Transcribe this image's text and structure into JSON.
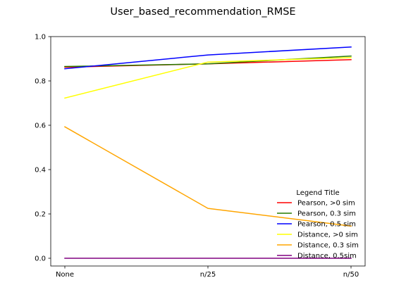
{
  "chart_data": {
    "type": "line",
    "title": "User_based_recommendation_RMSE",
    "xlabel": "",
    "ylabel": "",
    "categories": [
      "None",
      "n/25",
      "n/50"
    ],
    "ylim": [
      0.0,
      1.0
    ],
    "yticks": [
      "0.0",
      "0.2",
      "0.4",
      "0.6",
      "0.8",
      "1.0"
    ],
    "grid": false,
    "legend": {
      "title": "Legend Title",
      "placement": "lower-right"
    },
    "series": [
      {
        "name": "Pearson, >0 sim",
        "color": "#ff0000",
        "values": [
          0.862,
          0.877,
          0.896
        ]
      },
      {
        "name": "Pearson, 0.3 sim",
        "color": "#267a00",
        "values": [
          0.865,
          0.877,
          0.912
        ]
      },
      {
        "name": "Pearson, 0.5 sim",
        "color": "#0000ff",
        "values": [
          0.855,
          0.917,
          0.953
        ]
      },
      {
        "name": "Distance, >0 sim",
        "color": "#ffff00",
        "values": [
          0.723,
          0.885,
          0.905
        ]
      },
      {
        "name": "Distance, 0.3 sim",
        "color": "#ffa500",
        "values": [
          0.593,
          0.225,
          0.145
        ]
      },
      {
        "name": "Distance, 0.5sim",
        "color": "#800080",
        "values": [
          0.0,
          0.0,
          0.0
        ]
      }
    ]
  }
}
